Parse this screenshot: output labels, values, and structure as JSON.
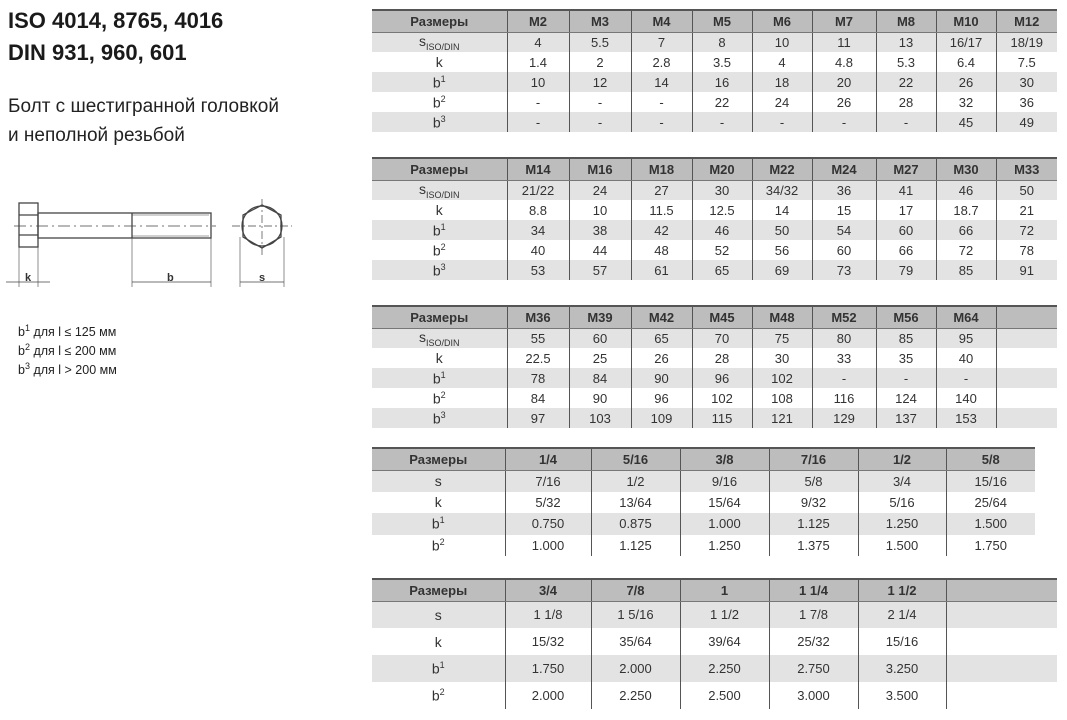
{
  "header": {
    "title_line1": "ISO 4014, 8765, 4016",
    "title_line2": "DIN 931, 960, 601",
    "subtitle_line1": "Болт с шестигранной головкой",
    "subtitle_line2": "и неполной резьбой"
  },
  "drawing": {
    "label_k": "k",
    "label_b": "b",
    "label_s": "s"
  },
  "notes": [
    {
      "sup": "1",
      "text": " для l ≤ 125 мм",
      "base": "b"
    },
    {
      "sup": "2",
      "text": " для l ≤ 200 мм",
      "base": "b"
    },
    {
      "sup": "3",
      "text": " для l > 200 мм",
      "base": "b"
    }
  ],
  "tables": [
    {
      "header": "Размеры",
      "columns": [
        "M2",
        "M3",
        "M4",
        "M5",
        "M6",
        "M7",
        "M8",
        "M10",
        "M12"
      ],
      "rows": [
        {
          "base": "s",
          "sub": "ISO/DIN",
          "values": [
            "4",
            "5.5",
            "7",
            "8",
            "10",
            "11",
            "13",
            "16/17",
            "18/19"
          ]
        },
        {
          "base": "k",
          "values": [
            "1.4",
            "2",
            "2.8",
            "3.5",
            "4",
            "4.8",
            "5.3",
            "6.4",
            "7.5"
          ]
        },
        {
          "base": "b",
          "sup": "1",
          "values": [
            "10",
            "12",
            "14",
            "16",
            "18",
            "20",
            "22",
            "26",
            "30"
          ]
        },
        {
          "base": "b",
          "sup": "2",
          "values": [
            "-",
            "-",
            "-",
            "22",
            "24",
            "26",
            "28",
            "32",
            "36"
          ]
        },
        {
          "base": "b",
          "sup": "3",
          "values": [
            "-",
            "-",
            "-",
            "-",
            "-",
            "-",
            "-",
            "45",
            "49"
          ]
        }
      ]
    },
    {
      "header": "Размеры",
      "columns": [
        "M14",
        "M16",
        "M18",
        "M20",
        "M22",
        "M24",
        "M27",
        "M30",
        "M33"
      ],
      "rows": [
        {
          "base": "s",
          "sub": "ISO/DIN",
          "values": [
            "21/22",
            "24",
            "27",
            "30",
            "34/32",
            "36",
            "41",
            "46",
            "50"
          ]
        },
        {
          "base": "k",
          "values": [
            "8.8",
            "10",
            "11.5",
            "12.5",
            "14",
            "15",
            "17",
            "18.7",
            "21"
          ]
        },
        {
          "base": "b",
          "sup": "1",
          "values": [
            "34",
            "38",
            "42",
            "46",
            "50",
            "54",
            "60",
            "66",
            "72"
          ]
        },
        {
          "base": "b",
          "sup": "2",
          "values": [
            "40",
            "44",
            "48",
            "52",
            "56",
            "60",
            "66",
            "72",
            "78"
          ]
        },
        {
          "base": "b",
          "sup": "3",
          "values": [
            "53",
            "57",
            "61",
            "65",
            "69",
            "73",
            "79",
            "85",
            "91"
          ]
        }
      ]
    },
    {
      "header": "Размеры",
      "columns": [
        "M36",
        "M39",
        "M42",
        "M45",
        "M48",
        "M52",
        "M56",
        "M64",
        ""
      ],
      "rows": [
        {
          "base": "s",
          "sub": "ISO/DIN",
          "values": [
            "55",
            "60",
            "65",
            "70",
            "75",
            "80",
            "85",
            "95",
            ""
          ]
        },
        {
          "base": "k",
          "values": [
            "22.5",
            "25",
            "26",
            "28",
            "30",
            "33",
            "35",
            "40",
            ""
          ]
        },
        {
          "base": "b",
          "sup": "1",
          "values": [
            "78",
            "84",
            "90",
            "96",
            "102",
            "-",
            "-",
            "-",
            ""
          ]
        },
        {
          "base": "b",
          "sup": "2",
          "values": [
            "84",
            "90",
            "96",
            "102",
            "108",
            "116",
            "124",
            "140",
            ""
          ]
        },
        {
          "base": "b",
          "sup": "3",
          "values": [
            "97",
            "103",
            "109",
            "115",
            "121",
            "129",
            "137",
            "153",
            ""
          ]
        }
      ]
    },
    {
      "header": "Размеры",
      "columns": [
        "1/4",
        "5/16",
        "3/8",
        "7/16",
        "1/2",
        "5/8"
      ],
      "rows": [
        {
          "base": "s",
          "values": [
            "7/16",
            "1/2",
            "9/16",
            "5/8",
            "3/4",
            "15/16"
          ]
        },
        {
          "base": "k",
          "values": [
            "5/32",
            "13/64",
            "15/64",
            "9/32",
            "5/16",
            "25/64"
          ]
        },
        {
          "base": "b",
          "sup": "1",
          "values": [
            "0.750",
            "0.875",
            "1.000",
            "1.125",
            "1.250",
            "1.500"
          ]
        },
        {
          "base": "b",
          "sup": "2",
          "values": [
            "1.000",
            "1.125",
            "1.250",
            "1.375",
            "1.500",
            "1.750"
          ]
        }
      ]
    },
    {
      "header": "Размеры",
      "columns": [
        "3/4",
        "7/8",
        "1",
        "1 1/4",
        "1 1/2",
        ""
      ],
      "rows": [
        {
          "base": "s",
          "values": [
            "1 1/8",
            "1 5/16",
            "1 1/2",
            "1 7/8",
            "2 1/4",
            ""
          ]
        },
        {
          "base": "k",
          "values": [
            "15/32",
            "35/64",
            "39/64",
            "25/32",
            "15/16",
            ""
          ]
        },
        {
          "base": "b",
          "sup": "1",
          "values": [
            "1.750",
            "2.000",
            "2.250",
            "2.750",
            "3.250",
            ""
          ]
        },
        {
          "base": "b",
          "sup": "2",
          "values": [
            "2.000",
            "2.250",
            "2.500",
            "3.000",
            "3.500",
            ""
          ]
        }
      ]
    }
  ]
}
